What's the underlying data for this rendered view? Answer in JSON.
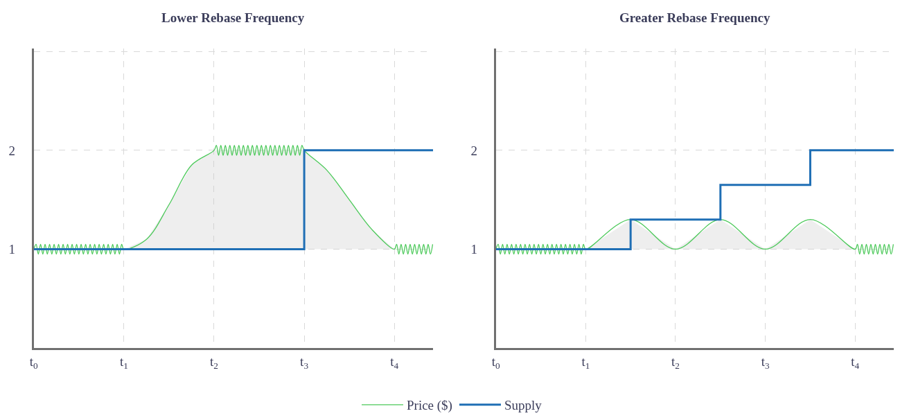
{
  "chart_data": [
    {
      "type": "line",
      "title": "Lower Rebase Frequency",
      "xlim": [
        0,
        4.43
      ],
      "xticks": [
        {
          "value": 0,
          "label": "t$_{0}$"
        },
        {
          "value": 1,
          "label": "t$_{1}$"
        },
        {
          "value": 2,
          "label": "t$_{2}$"
        },
        {
          "value": 3,
          "label": "t$_{3}$"
        },
        {
          "value": 4,
          "label": "t$_{4}$"
        }
      ],
      "yticks": [
        1,
        2,
        {
          "value": 3,
          "label": null
        }
      ],
      "grid": true,
      "legend": "bottom",
      "ylim": [
        0,
        3.03
      ],
      "series": [
        {
          "name": "Price ($)",
          "color": "#4cc95a",
          "x": [
            0,
            0.025,
            0.05,
            0.075,
            0.1,
            0.125,
            0.15,
            0.175,
            0.2,
            0.225,
            0.25,
            0.275,
            0.3,
            0.325,
            0.35,
            0.375,
            0.4,
            0.425,
            0.45,
            0.475,
            0.5,
            0.525,
            0.55,
            0.575,
            0.6,
            0.625,
            0.65,
            0.675,
            0.7,
            0.725,
            0.75,
            0.775,
            0.8,
            0.825,
            0.85,
            0.875,
            0.9,
            0.925,
            0.95,
            0.975,
            1.0,
            1.25,
            1.5,
            1.75,
            2.0,
            2.025,
            2.05,
            2.075,
            2.1,
            2.125,
            2.15,
            2.175,
            2.2,
            2.225,
            2.25,
            2.275,
            2.3,
            2.325,
            2.35,
            2.375,
            2.4,
            2.425,
            2.45,
            2.475,
            2.5,
            2.525,
            2.55,
            2.575,
            2.6,
            2.625,
            2.65,
            2.675,
            2.7,
            2.725,
            2.75,
            2.775,
            2.8,
            2.825,
            2.85,
            2.875,
            2.9,
            2.925,
            2.95,
            2.975,
            3.0,
            3.25,
            3.5,
            3.75,
            4.0,
            4.025,
            4.05,
            4.075,
            4.1,
            4.125,
            4.15,
            4.175,
            4.2,
            4.225,
            4.25,
            4.275,
            4.3,
            4.325,
            4.35,
            4.375,
            4.4,
            4.425
          ],
          "values": [
            1,
            1.05,
            0.95,
            1.05,
            0.95,
            1.05,
            0.95,
            1.05,
            0.95,
            1.05,
            0.95,
            1.05,
            0.95,
            1.05,
            0.95,
            1.05,
            0.95,
            1.05,
            0.95,
            1.05,
            0.95,
            1.05,
            0.95,
            1.05,
            0.95,
            1.05,
            0.95,
            1.05,
            0.95,
            1.05,
            0.95,
            1.05,
            0.95,
            1.05,
            0.95,
            1.05,
            0.95,
            1.05,
            0.95,
            1.05,
            1,
            1.1,
            1.45,
            1.85,
            2,
            2.05,
            1.95,
            2.05,
            1.95,
            2.05,
            1.95,
            2.05,
            1.95,
            2.05,
            1.95,
            2.05,
            1.95,
            2.05,
            1.95,
            2.05,
            1.95,
            2.05,
            1.95,
            2.05,
            1.95,
            2.05,
            1.95,
            2.05,
            1.95,
            2.05,
            1.95,
            2.05,
            1.95,
            2.05,
            1.95,
            2.05,
            1.95,
            2.05,
            1.95,
            2.05,
            1.95,
            2.05,
            1.95,
            2.05,
            2,
            1.8,
            1.5,
            1.2,
            1,
            1.05,
            0.95,
            1.05,
            0.95,
            1.05,
            0.95,
            1.05,
            0.95,
            1.05,
            0.95,
            1.05,
            0.95,
            1.05,
            0.95,
            1.05,
            0.95,
            1.05
          ],
          "upper": [
            null,
            null,
            null,
            null,
            null,
            null,
            null,
            null,
            null,
            null,
            null,
            null,
            null,
            null,
            null,
            null,
            null,
            null,
            null,
            null,
            null,
            null,
            null,
            null,
            null,
            null,
            null,
            null,
            null,
            null,
            null,
            null,
            null,
            null,
            null,
            null,
            null,
            null,
            null,
            null,
            1,
            1.1,
            1.45,
            1.85,
            2,
            2,
            2,
            2,
            2,
            2,
            2,
            2,
            2,
            2,
            2,
            2,
            2,
            2,
            2,
            2,
            2,
            2,
            2,
            2,
            2,
            2,
            2,
            2,
            2,
            2,
            2,
            2,
            2,
            2,
            2,
            2,
            2,
            2,
            2,
            2,
            2,
            2,
            2,
            2,
            2,
            1.8,
            1.5,
            1.2,
            1,
            null,
            null,
            null,
            null,
            null,
            null,
            null,
            null,
            null,
            null,
            null,
            null,
            null,
            null,
            null,
            null,
            null
          ],
          "lower": [
            null,
            null,
            null,
            null,
            null,
            null,
            null,
            null,
            null,
            null,
            null,
            null,
            null,
            null,
            null,
            null,
            null,
            null,
            null,
            null,
            null,
            null,
            null,
            null,
            null,
            null,
            null,
            null,
            null,
            null,
            null,
            null,
            null,
            null,
            null,
            null,
            null,
            null,
            null,
            null,
            1,
            1,
            1,
            1,
            1,
            1,
            1,
            1,
            1,
            1,
            1,
            1,
            1,
            1,
            1,
            1,
            1,
            1,
            1,
            1,
            1,
            1,
            1,
            1,
            1,
            1,
            1,
            1,
            1,
            1,
            1,
            1,
            1,
            1,
            1,
            1,
            1,
            1,
            1,
            1,
            1,
            1,
            1,
            1,
            1,
            1,
            1,
            1,
            1,
            null,
            null,
            null,
            null,
            null,
            null,
            null,
            null,
            null,
            null,
            null,
            null,
            null,
            null,
            null,
            null,
            null
          ]
        },
        {
          "name": "Supply",
          "color": "#1f6fb5",
          "type": "step",
          "x": [
            0,
            3,
            4.43
          ],
          "values": [
            1,
            2,
            2
          ]
        }
      ]
    },
    {
      "type": "line",
      "title": "Greater Rebase Frequency",
      "xlim": [
        0,
        4.43
      ],
      "ylim": [
        0,
        3.03
      ],
      "xticks": [
        {
          "value": 0,
          "label": "t$_{0}$"
        },
        {
          "value": 1,
          "label": "t$_{1}$"
        },
        {
          "value": 2,
          "label": "t$_{2}$"
        },
        {
          "value": 3,
          "label": "t$_{3}$"
        },
        {
          "value": 4,
          "label": "t$_{4}$"
        }
      ],
      "yticks": [
        1,
        2,
        {
          "value": 3,
          "label": null
        }
      ],
      "grid": true,
      "series": [
        {
          "color": "#4cc95a",
          "x": [
            0,
            0.025,
            0.05,
            0.075,
            0.1,
            0.125,
            0.15,
            0.175,
            0.2,
            0.225,
            0.25,
            0.275,
            0.3,
            0.325,
            0.35,
            0.375,
            0.4,
            0.425,
            0.45,
            0.475,
            0.5,
            0.525,
            0.55,
            0.575,
            0.6,
            0.625,
            0.65,
            0.675,
            0.7,
            0.725,
            0.75,
            0.775,
            0.8,
            0.825,
            0.85,
            0.875,
            0.9,
            0.925,
            0.95,
            0.975,
            1.0,
            1.5,
            2.0,
            2.5,
            3.0,
            3.5,
            4.0,
            4.025,
            4.05,
            4.075,
            4.1,
            4.125,
            4.15,
            4.175,
            4.2,
            4.225,
            4.25,
            4.275,
            4.3,
            4.325,
            4.35,
            4.375,
            4.4,
            4.425
          ],
          "values": [
            1,
            1.05,
            0.95,
            1.05,
            0.95,
            1.05,
            0.95,
            1.05,
            0.95,
            1.05,
            0.95,
            1.05,
            0.95,
            1.05,
            0.95,
            1.05,
            0.95,
            1.05,
            0.95,
            1.05,
            0.95,
            1.05,
            0.95,
            1.05,
            0.95,
            1.05,
            0.95,
            1.05,
            0.95,
            1.05,
            0.95,
            1.05,
            0.95,
            1.05,
            0.95,
            1.05,
            0.95,
            1.05,
            0.95,
            1.05,
            1,
            1.3,
            1,
            1.3,
            1,
            1.3,
            1,
            1.05,
            0.95,
            1.05,
            0.95,
            1.05,
            0.95,
            1.05,
            0.95,
            1.05,
            0.95,
            1.05,
            0.95,
            1.05,
            0.95,
            1.05,
            0.95,
            1.05
          ],
          "upper": [
            null,
            null,
            null,
            null,
            null,
            null,
            null,
            null,
            null,
            null,
            null,
            null,
            null,
            null,
            null,
            null,
            null,
            null,
            null,
            null,
            null,
            null,
            null,
            null,
            null,
            null,
            null,
            null,
            null,
            null,
            null,
            null,
            null,
            null,
            null,
            null,
            null,
            null,
            null,
            null,
            1,
            1.3,
            1,
            1.3,
            1,
            1.3,
            1,
            null,
            null,
            null,
            null,
            null,
            null,
            null,
            null,
            null,
            null,
            null,
            null,
            null,
            null,
            null,
            null,
            null
          ],
          "lower": [
            null,
            null,
            null,
            null,
            null,
            null,
            null,
            null,
            null,
            null,
            null,
            null,
            null,
            null,
            null,
            null,
            null,
            null,
            null,
            null,
            null,
            null,
            null,
            null,
            null,
            null,
            null,
            null,
            null,
            null,
            null,
            null,
            null,
            null,
            null,
            null,
            null,
            null,
            null,
            null,
            1,
            1,
            1,
            1,
            1,
            1,
            1,
            null,
            null,
            null,
            null,
            null,
            null,
            null,
            null,
            null,
            null,
            null,
            null,
            null,
            null,
            null,
            null,
            null
          ]
        },
        {
          "color": "#1f6fb5",
          "type": "step",
          "x": [
            0,
            1.5,
            2.5,
            3.5,
            4.43
          ],
          "values": [
            1,
            1.3,
            1.65,
            2,
            2
          ]
        }
      ]
    }
  ]
}
